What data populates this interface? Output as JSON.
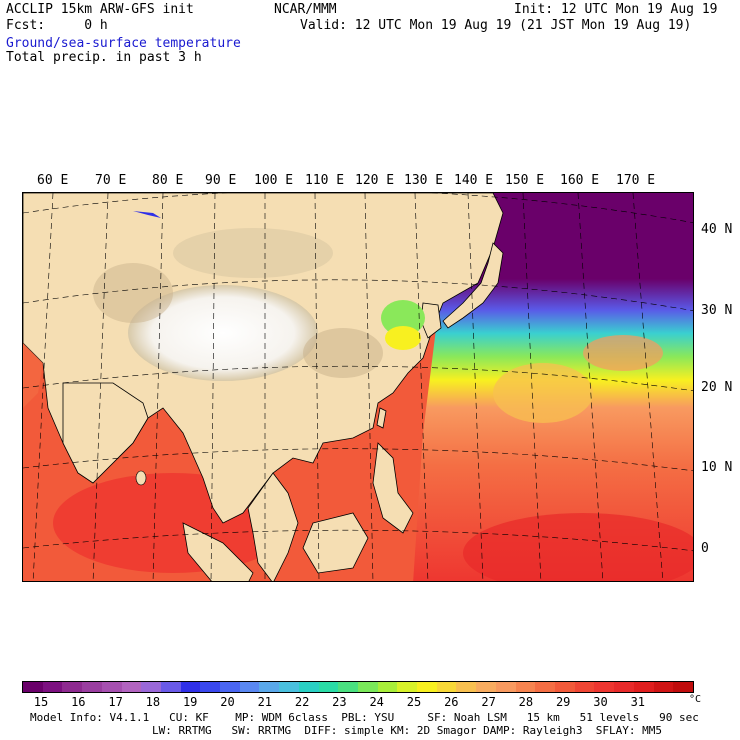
{
  "header": {
    "model": "ACCLIP 15km ARW-GFS init",
    "fcst": "Fcst:     0 h",
    "org": "NCAR/MMM",
    "init": "Init: 12 UTC Mon 19 Aug 19",
    "valid": "Valid: 12 UTC Mon 19 Aug 19 (21 JST Mon 19 Aug 19)",
    "field1": "Ground/sea-surface temperature",
    "field2": "Total precip. in past 3 h"
  },
  "map": {
    "lon_labels": [
      "60 E",
      "70 E",
      "80 E",
      "90 E",
      "100 E",
      "110 E",
      "120 E",
      "130 E",
      "140 E",
      "150 E",
      "160 E",
      "170 E"
    ],
    "lat_labels": [
      "40 N",
      "30 N",
      "20 N",
      "10 N",
      "0"
    ]
  },
  "colorbar": {
    "tick_labels": [
      "15",
      "16",
      "17",
      "18",
      "19",
      "20",
      "21",
      "22",
      "23",
      "24",
      "25",
      "26",
      "27",
      "28",
      "29",
      "30",
      "31"
    ],
    "unit": "°C",
    "colors": [
      "#6a006a",
      "#7c1080",
      "#8e2a90",
      "#9a3ea0",
      "#a650b0",
      "#b264c0",
      "#9a68d8",
      "#6a5ae8",
      "#3030e8",
      "#3a48ee",
      "#4a66f2",
      "#5a88f2",
      "#5aa8ea",
      "#4ac0de",
      "#2ad0c4",
      "#2adca6",
      "#4ae080",
      "#7ae85a",
      "#a8ee3a",
      "#d8f22a",
      "#f8f020",
      "#f8d838",
      "#f8c050",
      "#f8ac60",
      "#f89a60",
      "#f68450",
      "#f46e44",
      "#f25a3a",
      "#f04634",
      "#ee3630",
      "#e82a2a",
      "#e01e1e",
      "#d01414",
      "#c00c0c"
    ]
  },
  "footer": {
    "line1": "Model Info: V4.1.1   CU: KF    MP: WDM 6class  PBL: YSU     SF: Noah LSM   15 km   51 levels   90 sec",
    "line2": "LW: RRTMG   SW: RRTMG  DIFF: simple KM: 2D Smagor DAMP: Rayleigh3  SFLAY: MM5"
  }
}
